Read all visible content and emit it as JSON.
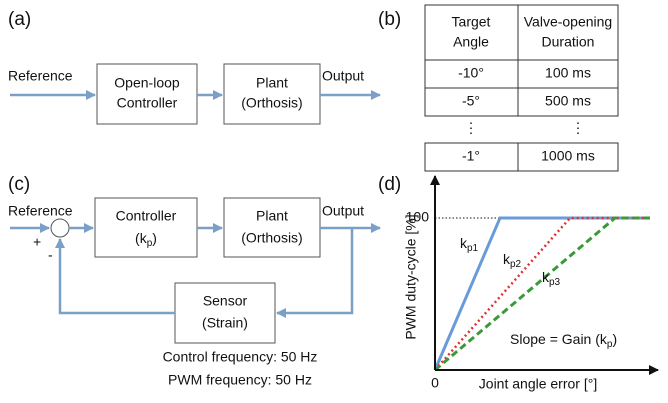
{
  "panel_a": {
    "label": "(a)",
    "input": "Reference",
    "controller": [
      "Open-loop",
      "Controller"
    ],
    "plant": [
      "Plant",
      "(Orthosis)"
    ],
    "output": "Output"
  },
  "panel_b": {
    "label": "(b)",
    "header": [
      [
        "Target",
        "Angle"
      ],
      [
        "Valve-opening",
        "Duration"
      ]
    ],
    "rows": [
      [
        "-10°",
        "100 ms"
      ],
      [
        "-5°",
        "500 ms"
      ],
      [
        "-1°",
        "1000 ms"
      ]
    ],
    "gap": [
      "⋮",
      "⋮"
    ]
  },
  "panel_c": {
    "label": "(c)",
    "input": "Reference",
    "plus": "+",
    "minus": "-",
    "controller": {
      "line1": "Controller",
      "line2_pre": "(k",
      "line2_sub": "p",
      "line2_post": ")"
    },
    "plant": [
      "Plant",
      "(Orthosis)"
    ],
    "output": "Output",
    "sensor": [
      "Sensor",
      "(Strain)"
    ],
    "notes": [
      "Control frequency: 50 Hz",
      "PWM frequency: 50 Hz"
    ]
  },
  "panel_d": {
    "label": "(d)",
    "y_axis_label": "PWM duty-cycle [%]",
    "x_axis_label": "Joint angle error [°]",
    "y_max_label": "100",
    "origin_label": "0",
    "curves": [
      {
        "k": "k",
        "sub": "p1"
      },
      {
        "k": "k",
        "sub": "p2"
      },
      {
        "k": "k",
        "sub": "p3"
      }
    ],
    "note": {
      "pre": "Slope = Gain (k",
      "sub": "p",
      "post": ")"
    }
  }
}
